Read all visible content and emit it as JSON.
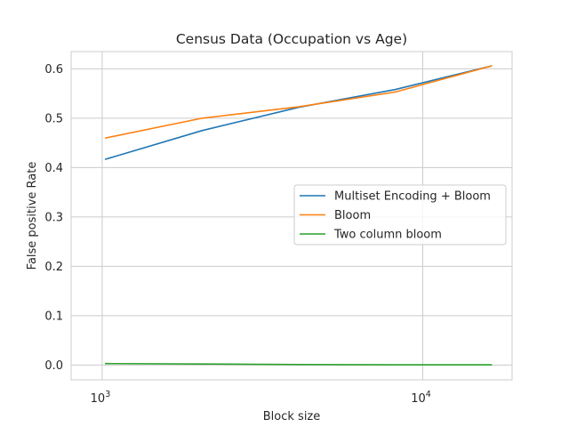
{
  "chart_data": {
    "type": "line",
    "title": "Census Data (Occupation vs Age)",
    "xlabel": "Block size",
    "ylabel": "False positive Rate",
    "xscale": "log",
    "xlim": [
      800,
      19000
    ],
    "ylim": [
      -0.03,
      0.635
    ],
    "x_ticks": [
      1000,
      10000
    ],
    "x_tick_labels": [
      {
        "base": "10",
        "exp": "3"
      },
      {
        "base": "10",
        "exp": "4"
      }
    ],
    "y_ticks": [
      0.0,
      0.1,
      0.2,
      0.3,
      0.4,
      0.5,
      0.6
    ],
    "y_tick_labels": [
      "0.0",
      "0.1",
      "0.2",
      "0.3",
      "0.4",
      "0.5",
      "0.6"
    ],
    "grid": true,
    "legend_position": "center-right",
    "x": [
      1024,
      2048,
      4096,
      8192,
      16384
    ],
    "series": [
      {
        "name": "Multiset Encoding + Bloom",
        "color": "#1f77b4",
        "values": [
          0.417,
          0.475,
          0.522,
          0.558,
          0.606
        ]
      },
      {
        "name": "Bloom",
        "color": "#ff7f0e",
        "values": [
          0.46,
          0.5,
          0.523,
          0.553,
          0.606
        ]
      },
      {
        "name": "Two column bloom",
        "color": "#2ca02c",
        "values": [
          0.003,
          0.002,
          0.001,
          0.0005,
          0.0005
        ]
      }
    ]
  }
}
